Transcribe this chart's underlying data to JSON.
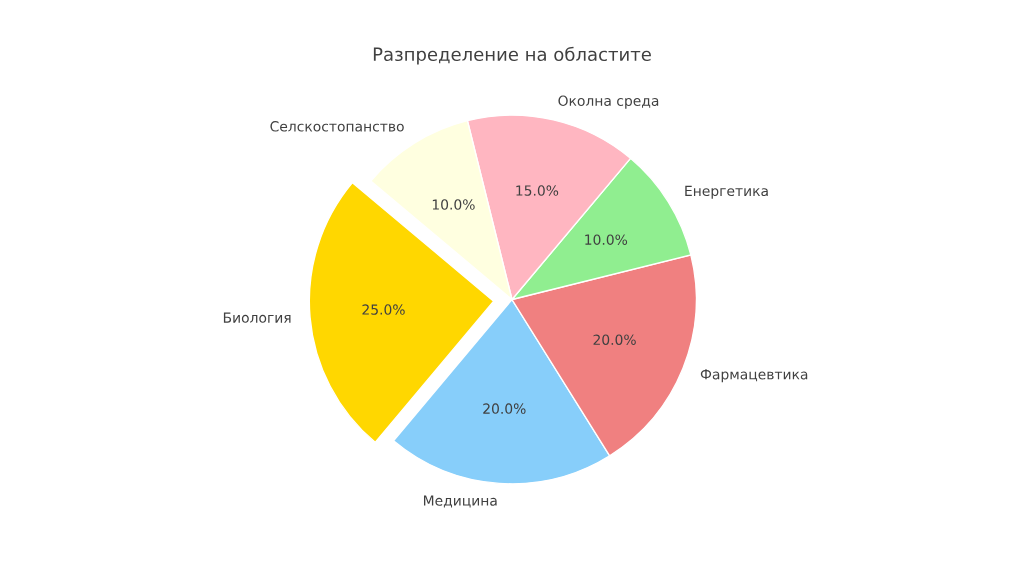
{
  "chart_data": {
    "type": "pie",
    "title": "Разпределение на областите",
    "categories": [
      "Биология",
      "Медицина",
      "Фармацевтика",
      "Енергетика",
      "Околна среда",
      "Селскостопанство"
    ],
    "values": [
      25,
      20,
      20,
      10,
      15,
      10
    ],
    "colors": [
      "#ffd700",
      "#87cefa",
      "#f08080",
      "#90ee90",
      "#ffb6c1",
      "#ffffe0"
    ],
    "data_labels": true,
    "value_labels": [
      "25.0%",
      "20.0%",
      "20.0%",
      "10.0%",
      "15.0%",
      "10.0%"
    ]
  }
}
